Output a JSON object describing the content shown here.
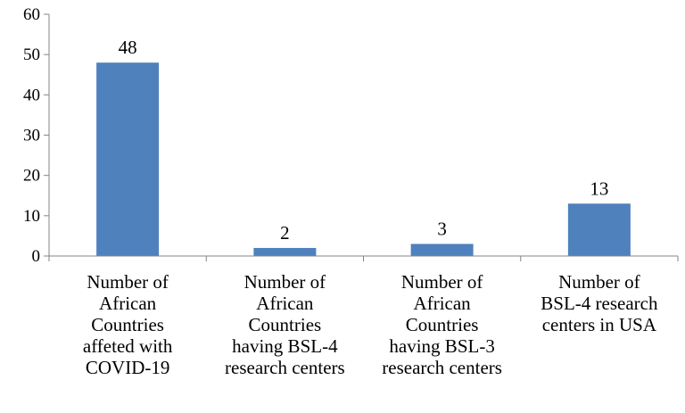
{
  "chart_data": {
    "type": "bar",
    "title": "",
    "xlabel": "",
    "ylabel": "",
    "ylim": [
      0,
      60
    ],
    "yticks": [
      0,
      10,
      20,
      30,
      40,
      50,
      60
    ],
    "grid": false,
    "legend": "none",
    "bar_color": "#4F81BD",
    "categories": [
      [
        "Number of",
        "African",
        "Countries",
        "affeted with",
        "COVID-19"
      ],
      [
        "Number of",
        "African",
        "Countries",
        "having BSL-4",
        "research centers"
      ],
      [
        "Number of",
        "African",
        "Countries",
        "having BSL-3",
        "research centers"
      ],
      [
        "Number of",
        "BSL-4 research",
        "centers in USA"
      ]
    ],
    "values": [
      48,
      2,
      3,
      13
    ],
    "data_labels": [
      "48",
      "2",
      "3",
      "13"
    ]
  }
}
